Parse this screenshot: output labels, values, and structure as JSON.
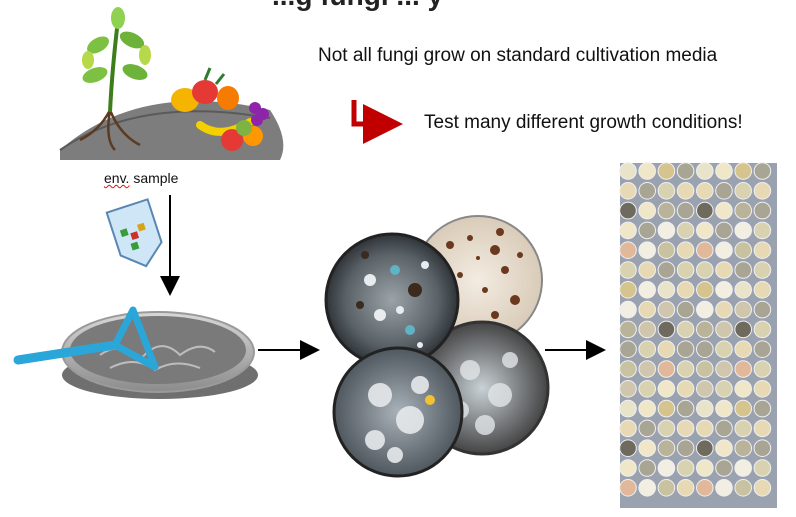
{
  "title_partial": "...g fungi ... y",
  "note_text": "Not all fungi grow on standard cultivation media",
  "action_text": "Test many different growth conditions!",
  "sample_label_prefix": "env.",
  "sample_label_suffix": " sample",
  "colors": {
    "action_arrow": "#c00000",
    "pipette_tip": "#2aa6d9",
    "flow_arrows": "#000000"
  }
}
